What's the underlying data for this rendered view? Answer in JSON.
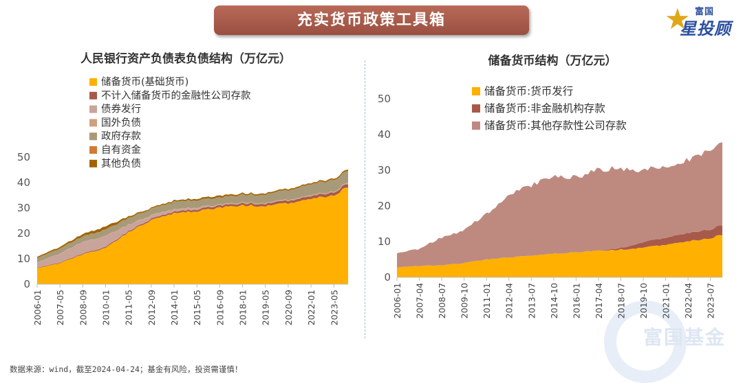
{
  "banner": {
    "title": "充实货币政策工具箱"
  },
  "logo": {
    "line1": "富国",
    "line2": "星投顾"
  },
  "watermark": "富国基金",
  "footer": {
    "text": "数据来源：wind，截至2024-04-24；基金有风险，投资需谨慎！"
  },
  "colors": {
    "banner": "#a85a49",
    "reserve": "#FFB000",
    "non_financial": "#A85A4A",
    "other_deposits": "#BE8A80",
    "bonds": "#C9A49A",
    "foreign": "#CFA080",
    "government": "#A89A78",
    "own_funds": "#D27A34",
    "other_liabilities": "#A06400"
  },
  "chart_data": [
    {
      "type": "area",
      "stacked": true,
      "title": "人民银行资产负债表负债结构（万亿元）",
      "xlabel": "",
      "ylabel": "",
      "ylim": [
        0,
        50
      ],
      "yticks": [
        "0",
        "10",
        "20",
        "30",
        "40",
        "50"
      ],
      "x_tick_labels": [
        "2006-01",
        "2007-05",
        "2008-09",
        "2010-01",
        "2011-05",
        "2012-09",
        "2014-01",
        "2015-05",
        "2016-09",
        "2018-01",
        "2019-05",
        "2020-09",
        "2022-01",
        "2023-05"
      ],
      "x": [
        "2006-01",
        "2007-05",
        "2008-09",
        "2010-01",
        "2011-05",
        "2012-09",
        "2014-01",
        "2015-05",
        "2016-09",
        "2018-01",
        "2019-05",
        "2020-09",
        "2022-01",
        "2023-05",
        "2024-03"
      ],
      "legend_position": "top-left",
      "series": [
        {
          "name": "储备货币(基础货币)",
          "color": "#FFB000",
          "values": [
            6.3,
            8.3,
            11.8,
            14.2,
            20.5,
            25.2,
            27.8,
            28.8,
            30.2,
            31.2,
            30.8,
            32.0,
            33.5,
            35.0,
            38.5
          ]
        },
        {
          "name": "不计入储备货币的金融性公司存款",
          "color": "#A85A4A",
          "values": [
            0.2,
            0.2,
            0.3,
            0.4,
            0.4,
            0.5,
            0.6,
            0.7,
            0.8,
            0.8,
            0.9,
            1.0,
            1.1,
            1.2,
            1.3
          ]
        },
        {
          "name": "债券发行",
          "color": "#C9A49A",
          "values": [
            2.0,
            3.5,
            4.5,
            4.2,
            2.4,
            1.3,
            0.8,
            0.6,
            0.2,
            0.1,
            0.1,
            0.1,
            0.1,
            0.1,
            0.2
          ]
        },
        {
          "name": "国外负债",
          "color": "#CFA080",
          "values": [
            0.1,
            0.1,
            0.1,
            0.1,
            0.2,
            0.2,
            0.2,
            0.2,
            0.2,
            0.3,
            0.3,
            0.3,
            0.3,
            0.3,
            0.3
          ]
        },
        {
          "name": "政府存款",
          "color": "#A89A78",
          "values": [
            1.7,
            2.0,
            2.2,
            2.5,
            2.6,
            2.4,
            2.9,
            2.9,
            2.7,
            3.0,
            3.2,
            3.8,
            4.3,
            4.5,
            4.6
          ]
        },
        {
          "name": "自有资金",
          "color": "#D27A34",
          "values": [
            0.02,
            0.02,
            0.02,
            0.02,
            0.02,
            0.02,
            0.02,
            0.02,
            0.02,
            0.02,
            0.02,
            0.02,
            0.02,
            0.02,
            0.02
          ]
        },
        {
          "name": "其他负债",
          "color": "#A06400",
          "values": [
            0.5,
            0.6,
            0.9,
            1.2,
            0.6,
            0.4,
            0.5,
            0.6,
            0.7,
            0.5,
            0.5,
            0.5,
            0.5,
            0.5,
            0.6
          ]
        }
      ]
    },
    {
      "type": "area",
      "stacked": true,
      "title": "储备货币结构（万亿元）",
      "xlabel": "",
      "ylabel": "",
      "ylim": [
        0,
        50
      ],
      "yticks": [
        "0",
        "10",
        "20",
        "30",
        "40",
        "50"
      ],
      "x_tick_labels": [
        "2006-01",
        "2007-04",
        "2008-07",
        "2009-10",
        "2011-01",
        "2012-04",
        "2013-07",
        "2014-10",
        "2016-01",
        "2017-04",
        "2018-07",
        "2019-10",
        "2021-01",
        "2022-04",
        "2023-07"
      ],
      "x": [
        "2006-01",
        "2007-04",
        "2008-07",
        "2009-10",
        "2011-01",
        "2012-04",
        "2013-07",
        "2014-10",
        "2016-01",
        "2017-04",
        "2018-07",
        "2019-10",
        "2021-01",
        "2022-04",
        "2023-07",
        "2024-03"
      ],
      "legend_position": "top-left",
      "series": [
        {
          "name": "储备货币:货币发行",
          "color": "#FFB000",
          "values": [
            2.8,
            3.2,
            3.4,
            4.0,
            5.0,
            5.6,
            6.0,
            6.6,
            7.0,
            7.5,
            7.8,
            8.3,
            9.2,
            10.0,
            11.0,
            12.0
          ]
        },
        {
          "name": "储备货币:非金融机构存款",
          "color": "#A85A4A",
          "values": [
            0,
            0,
            0,
            0,
            0,
            0,
            0,
            0,
            0,
            0,
            0.5,
            1.5,
            2.0,
            2.3,
            2.5,
            2.7
          ]
        },
        {
          "name": "储备货币:其他存款性公司存款",
          "color": "#BE8A80",
          "values": [
            4.0,
            4.8,
            7.8,
            9.2,
            12.8,
            17.5,
            19.5,
            22.0,
            21.0,
            22.8,
            22.0,
            20.0,
            20.0,
            20.5,
            22.0,
            23.0
          ]
        }
      ]
    }
  ]
}
